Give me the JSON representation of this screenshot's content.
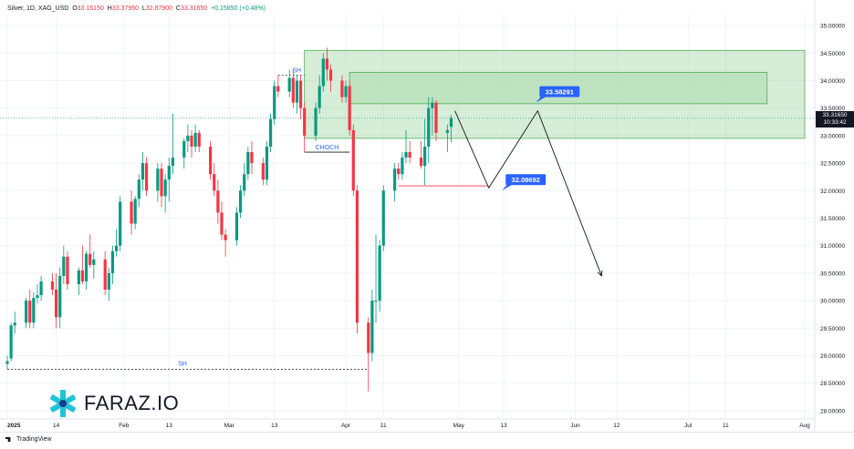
{
  "header": {
    "symbol": "Silver, 1D, XAG_USD",
    "o_label": "O",
    "o_value": "33.16150",
    "h_label": "H",
    "h_value": "33.37950",
    "l_label": "L",
    "l_value": "32.87900",
    "c_label": "C",
    "c_value": "33.31650",
    "change": "+0.15850 (+0.48%)"
  },
  "price_tag": {
    "price": "33.31650",
    "countdown": "10:33:42"
  },
  "brand": {
    "name": "FARAZ.IO"
  },
  "footer": {
    "logo_text": "TradingView"
  },
  "colors": {
    "up": "#089981",
    "down": "#f23645",
    "zone_fill": "#a5d6a7",
    "zone_stroke": "#4caf50",
    "callout": "#2962ff"
  },
  "chart_data": {
    "type": "candlestick",
    "title": "",
    "ylim": [
      27.85,
      35.2
    ],
    "y_ticks": [
      "35.00000",
      "34.50000",
      "34.00000",
      "33.50000",
      "33.00000",
      "32.50000",
      "32.00000",
      "31.50000",
      "31.00000",
      "30.50000",
      "30.00000",
      "29.50000",
      "29.00000",
      "28.50000",
      "28.00000"
    ],
    "x_ticks": [
      "2025",
      "14",
      "Feb",
      "13",
      "Mar",
      "13",
      "Apr",
      "11",
      "May",
      "13",
      "Jun",
      "12",
      "Jul",
      "11",
      "Aug"
    ],
    "x_tick_dates": [
      "2025-01-01",
      "2025-01-14",
      "2025-02-01",
      "2025-02-13",
      "2025-03-01",
      "2025-03-13",
      "2025-04-01",
      "2025-04-11",
      "2025-05-01",
      "2025-05-13",
      "2025-06-01",
      "2025-06-12",
      "2025-07-01",
      "2025-07-11",
      "2025-08-01"
    ],
    "candles": [
      {
        "d": "2025-01-01",
        "o": 28.85,
        "h": 29.0,
        "l": 28.75,
        "c": 28.9
      },
      {
        "d": "2025-01-02",
        "o": 28.95,
        "h": 29.6,
        "l": 28.9,
        "c": 29.55
      },
      {
        "d": "2025-01-03",
        "o": 29.55,
        "h": 29.8,
        "l": 29.4,
        "c": 29.6
      },
      {
        "d": "2025-01-06",
        "o": 29.6,
        "h": 30.05,
        "l": 29.5,
        "c": 30.0
      },
      {
        "d": "2025-01-07",
        "o": 30.0,
        "h": 30.2,
        "l": 29.5,
        "c": 29.6
      },
      {
        "d": "2025-01-08",
        "o": 29.6,
        "h": 30.15,
        "l": 29.5,
        "c": 30.05
      },
      {
        "d": "2025-01-09",
        "o": 30.05,
        "h": 30.3,
        "l": 29.95,
        "c": 30.1
      },
      {
        "d": "2025-01-10",
        "o": 30.1,
        "h": 30.45,
        "l": 30.0,
        "c": 30.35
      },
      {
        "d": "2025-01-13",
        "o": 30.35,
        "h": 30.5,
        "l": 30.1,
        "c": 30.2
      },
      {
        "d": "2025-01-14",
        "o": 30.2,
        "h": 30.5,
        "l": 29.5,
        "c": 29.7
      },
      {
        "d": "2025-01-15",
        "o": 29.7,
        "h": 30.6,
        "l": 29.5,
        "c": 30.45
      },
      {
        "d": "2025-01-16",
        "o": 30.45,
        "h": 31.0,
        "l": 30.3,
        "c": 30.8
      },
      {
        "d": "2025-01-17",
        "o": 30.8,
        "h": 30.9,
        "l": 30.2,
        "c": 30.3
      },
      {
        "d": "2025-01-20",
        "o": 30.3,
        "h": 30.6,
        "l": 30.1,
        "c": 30.55
      },
      {
        "d": "2025-01-21",
        "o": 30.55,
        "h": 31.0,
        "l": 30.3,
        "c": 30.35
      },
      {
        "d": "2025-01-22",
        "o": 30.35,
        "h": 30.9,
        "l": 30.2,
        "c": 30.85
      },
      {
        "d": "2025-01-23",
        "o": 30.85,
        "h": 31.2,
        "l": 30.6,
        "c": 30.65
      },
      {
        "d": "2025-01-24",
        "o": 30.65,
        "h": 30.9,
        "l": 30.4,
        "c": 30.75
      },
      {
        "d": "2025-01-27",
        "o": 30.75,
        "h": 30.9,
        "l": 30.1,
        "c": 30.2
      },
      {
        "d": "2025-01-28",
        "o": 30.2,
        "h": 30.6,
        "l": 30.0,
        "c": 30.5
      },
      {
        "d": "2025-01-29",
        "o": 30.5,
        "h": 31.0,
        "l": 30.3,
        "c": 30.9
      },
      {
        "d": "2025-01-30",
        "o": 30.9,
        "h": 31.3,
        "l": 30.8,
        "c": 31.0
      },
      {
        "d": "2025-01-31",
        "o": 31.0,
        "h": 31.9,
        "l": 30.9,
        "c": 31.8
      },
      {
        "d": "2025-02-03",
        "o": 31.8,
        "h": 32.0,
        "l": 31.2,
        "c": 31.4
      },
      {
        "d": "2025-02-04",
        "o": 31.4,
        "h": 31.9,
        "l": 31.3,
        "c": 31.85
      },
      {
        "d": "2025-02-05",
        "o": 31.85,
        "h": 32.3,
        "l": 31.7,
        "c": 32.2
      },
      {
        "d": "2025-02-06",
        "o": 32.2,
        "h": 32.7,
        "l": 32.0,
        "c": 32.5
      },
      {
        "d": "2025-02-07",
        "o": 32.5,
        "h": 32.6,
        "l": 31.9,
        "c": 32.0
      },
      {
        "d": "2025-02-10",
        "o": 32.0,
        "h": 32.5,
        "l": 31.8,
        "c": 32.4
      },
      {
        "d": "2025-02-11",
        "o": 32.4,
        "h": 32.5,
        "l": 31.7,
        "c": 31.9
      },
      {
        "d": "2025-02-12",
        "o": 31.9,
        "h": 32.3,
        "l": 31.6,
        "c": 32.2
      },
      {
        "d": "2025-02-13",
        "o": 32.2,
        "h": 32.6,
        "l": 31.8,
        "c": 32.45
      },
      {
        "d": "2025-02-14",
        "o": 32.45,
        "h": 33.4,
        "l": 32.3,
        "c": 32.6
      },
      {
        "d": "2025-02-17",
        "o": 32.6,
        "h": 32.95,
        "l": 32.4,
        "c": 32.9
      },
      {
        "d": "2025-02-18",
        "o": 32.9,
        "h": 33.2,
        "l": 32.7,
        "c": 33.0
      },
      {
        "d": "2025-02-19",
        "o": 33.0,
        "h": 33.1,
        "l": 32.6,
        "c": 32.8
      },
      {
        "d": "2025-02-20",
        "o": 32.8,
        "h": 33.2,
        "l": 32.7,
        "c": 33.05
      },
      {
        "d": "2025-02-21",
        "o": 33.05,
        "h": 33.1,
        "l": 32.7,
        "c": 32.8
      },
      {
        "d": "2025-02-24",
        "o": 32.8,
        "h": 32.9,
        "l": 32.2,
        "c": 32.3
      },
      {
        "d": "2025-02-25",
        "o": 32.3,
        "h": 32.5,
        "l": 31.9,
        "c": 32.0
      },
      {
        "d": "2025-02-26",
        "o": 32.0,
        "h": 32.2,
        "l": 31.4,
        "c": 31.6
      },
      {
        "d": "2025-02-27",
        "o": 31.6,
        "h": 31.8,
        "l": 31.1,
        "c": 31.2
      },
      {
        "d": "2025-02-28",
        "o": 31.2,
        "h": 31.3,
        "l": 30.8,
        "c": 31.1
      },
      {
        "d": "2025-03-03",
        "o": 31.1,
        "h": 31.7,
        "l": 31.0,
        "c": 31.6
      },
      {
        "d": "2025-03-04",
        "o": 31.6,
        "h": 32.1,
        "l": 31.5,
        "c": 32.0
      },
      {
        "d": "2025-03-05",
        "o": 32.0,
        "h": 32.5,
        "l": 31.9,
        "c": 32.3
      },
      {
        "d": "2025-03-06",
        "o": 32.3,
        "h": 32.8,
        "l": 32.2,
        "c": 32.7
      },
      {
        "d": "2025-03-07",
        "o": 32.7,
        "h": 32.9,
        "l": 32.3,
        "c": 32.5
      },
      {
        "d": "2025-03-10",
        "o": 32.5,
        "h": 32.6,
        "l": 32.1,
        "c": 32.2
      },
      {
        "d": "2025-03-11",
        "o": 32.2,
        "h": 32.9,
        "l": 32.1,
        "c": 32.8
      },
      {
        "d": "2025-03-12",
        "o": 32.8,
        "h": 33.4,
        "l": 32.7,
        "c": 33.3
      },
      {
        "d": "2025-03-13",
        "o": 33.3,
        "h": 34.0,
        "l": 33.2,
        "c": 33.9
      },
      {
        "d": "2025-03-14",
        "o": 33.9,
        "h": 34.1,
        "l": 33.7,
        "c": 33.8
      },
      {
        "d": "2025-03-17",
        "o": 33.8,
        "h": 34.2,
        "l": 33.7,
        "c": 34.05
      },
      {
        "d": "2025-03-18",
        "o": 34.05,
        "h": 34.2,
        "l": 33.5,
        "c": 33.6
      },
      {
        "d": "2025-03-19",
        "o": 33.6,
        "h": 34.1,
        "l": 33.4,
        "c": 34.0
      },
      {
        "d": "2025-03-20",
        "o": 34.0,
        "h": 34.1,
        "l": 33.3,
        "c": 33.5
      },
      {
        "d": "2025-03-21",
        "o": 33.5,
        "h": 33.6,
        "l": 32.7,
        "c": 33.0
      },
      {
        "d": "2025-03-24",
        "o": 33.0,
        "h": 33.6,
        "l": 32.9,
        "c": 33.5
      },
      {
        "d": "2025-03-25",
        "o": 33.5,
        "h": 34.1,
        "l": 33.4,
        "c": 33.9
      },
      {
        "d": "2025-03-26",
        "o": 33.9,
        "h": 34.5,
        "l": 33.8,
        "c": 34.4
      },
      {
        "d": "2025-03-27",
        "o": 34.4,
        "h": 34.6,
        "l": 34.0,
        "c": 34.2
      },
      {
        "d": "2025-03-28",
        "o": 34.2,
        "h": 34.3,
        "l": 33.8,
        "c": 34.0
      },
      {
        "d": "2025-03-31",
        "o": 34.0,
        "h": 34.1,
        "l": 33.6,
        "c": 33.7
      },
      {
        "d": "2025-04-01",
        "o": 33.7,
        "h": 34.0,
        "l": 33.6,
        "c": 33.9
      },
      {
        "d": "2025-04-02",
        "o": 33.9,
        "h": 34.0,
        "l": 33.0,
        "c": 33.1
      },
      {
        "d": "2025-04-03",
        "o": 33.1,
        "h": 33.2,
        "l": 31.9,
        "c": 32.0
      },
      {
        "d": "2025-04-04",
        "o": 32.0,
        "h": 32.1,
        "l": 29.4,
        "c": 29.6
      },
      {
        "d": "2025-04-07",
        "o": 29.6,
        "h": 29.7,
        "l": 28.35,
        "c": 29.05
      },
      {
        "d": "2025-04-08",
        "o": 29.05,
        "h": 30.2,
        "l": 28.9,
        "c": 30.0
      },
      {
        "d": "2025-04-09",
        "o": 30.0,
        "h": 31.2,
        "l": 29.6,
        "c": 30.0
      },
      {
        "d": "2025-04-10",
        "o": 30.0,
        "h": 31.1,
        "l": 29.8,
        "c": 31.0
      },
      {
        "d": "2025-04-11",
        "o": 31.0,
        "h": 32.1,
        "l": 30.9,
        "c": 32.0
      },
      {
        "d": "2025-04-14",
        "o": 32.0,
        "h": 32.5,
        "l": 31.8,
        "c": 32.4
      },
      {
        "d": "2025-04-15",
        "o": 32.4,
        "h": 32.5,
        "l": 32.2,
        "c": 32.3
      },
      {
        "d": "2025-04-16",
        "o": 32.3,
        "h": 32.7,
        "l": 32.2,
        "c": 32.6
      },
      {
        "d": "2025-04-17",
        "o": 32.6,
        "h": 33.1,
        "l": 32.5,
        "c": 32.7
      },
      {
        "d": "2025-04-18",
        "o": 32.7,
        "h": 32.9,
        "l": 32.5,
        "c": 32.6
      },
      {
        "d": "2025-04-21",
        "o": 32.6,
        "h": 32.9,
        "l": 32.4,
        "c": 32.45
      },
      {
        "d": "2025-04-22",
        "o": 32.45,
        "h": 33.3,
        "l": 32.1,
        "c": 32.8
      },
      {
        "d": "2025-04-23",
        "o": 32.8,
        "h": 33.7,
        "l": 32.5,
        "c": 33.5
      },
      {
        "d": "2025-04-24",
        "o": 33.5,
        "h": 33.7,
        "l": 33.0,
        "c": 33.6
      },
      {
        "d": "2025-04-25",
        "o": 33.6,
        "h": 33.65,
        "l": 32.9,
        "c": 33.05
      },
      {
        "d": "2025-04-28",
        "o": 33.05,
        "h": 33.2,
        "l": 32.7,
        "c": 33.1
      },
      {
        "d": "2025-04-29",
        "o": 33.16,
        "h": 33.38,
        "l": 32.88,
        "c": 33.32
      }
    ],
    "annotations": {
      "supply_zone_outer": {
        "x1": "2025-03-21",
        "x2": "2025-08-01",
        "y1": 32.95,
        "y2": 34.55
      },
      "supply_zone_inner": {
        "x1": "2025-04-02",
        "x2": "2025-07-22",
        "y1": 33.58,
        "y2": 34.15
      },
      "current_price_line": 33.3165,
      "sh_upper": {
        "label": "SH",
        "x1": "2025-03-14",
        "x2": "2025-03-21",
        "y": 34.1
      },
      "sh_lower": {
        "label": "SH",
        "x1": "2025-01-01",
        "x2": "2025-04-07",
        "y": 28.75
      },
      "choch": {
        "label": "CHOCH",
        "x1": "2025-03-21",
        "x2": "2025-04-02",
        "y": 32.7
      },
      "support_line": {
        "x1": "2025-04-15",
        "x2": "2025-05-09",
        "y": 32.08692
      },
      "projection_path": [
        {
          "d": "2025-04-30",
          "y": 33.45
        },
        {
          "d": "2025-05-09",
          "y": 32.05
        },
        {
          "d": "2025-05-22",
          "y": 33.45
        },
        {
          "d": "2025-06-08",
          "y": 30.45
        }
      ],
      "labels": [
        {
          "text": "33.58291",
          "d": "2025-05-22",
          "y": 33.8
        },
        {
          "text": "32.08692",
          "d": "2025-05-13",
          "y": 32.2
        }
      ]
    }
  }
}
